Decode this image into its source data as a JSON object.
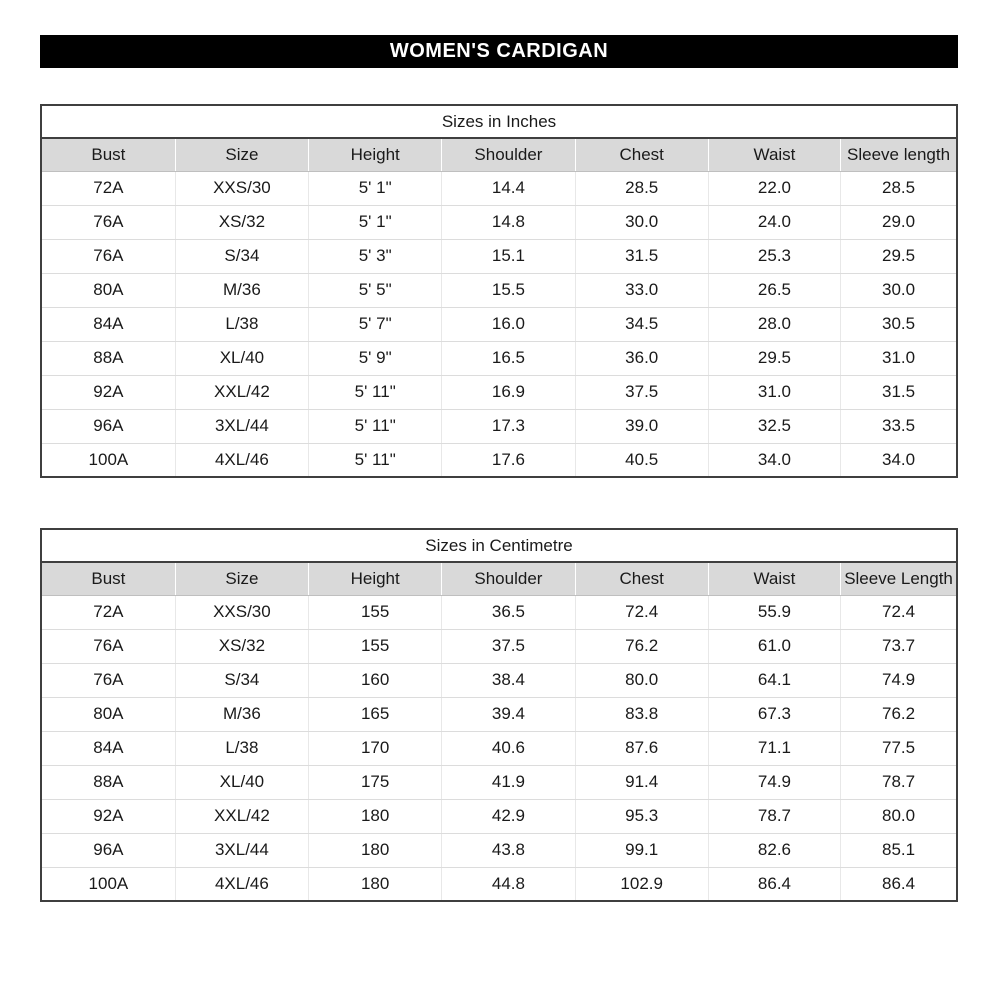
{
  "page": {
    "title": "WOMEN'S CARDIGAN"
  },
  "tables": [
    {
      "caption": "Sizes in Inches",
      "columns": [
        "Bust",
        "Size",
        "Height",
        "Shoulder",
        "Chest",
        "Waist",
        "Sleeve length"
      ],
      "rows": [
        [
          "72A",
          "XXS/30",
          "5' 1\"",
          "14.4",
          "28.5",
          "22.0",
          "28.5"
        ],
        [
          "76A",
          "XS/32",
          "5' 1\"",
          "14.8",
          "30.0",
          "24.0",
          "29.0"
        ],
        [
          "76A",
          "S/34",
          "5' 3\"",
          "15.1",
          "31.5",
          "25.3",
          "29.5"
        ],
        [
          "80A",
          "M/36",
          "5' 5\"",
          "15.5",
          "33.0",
          "26.5",
          "30.0"
        ],
        [
          "84A",
          "L/38",
          "5' 7\"",
          "16.0",
          "34.5",
          "28.0",
          "30.5"
        ],
        [
          "88A",
          "XL/40",
          "5' 9\"",
          "16.5",
          "36.0",
          "29.5",
          "31.0"
        ],
        [
          "92A",
          "XXL/42",
          "5' 11\"",
          "16.9",
          "37.5",
          "31.0",
          "31.5"
        ],
        [
          "96A",
          "3XL/44",
          "5' 11\"",
          "17.3",
          "39.0",
          "32.5",
          "33.5"
        ],
        [
          "100A",
          "4XL/46",
          "5' 11\"",
          "17.6",
          "40.5",
          "34.0",
          "34.0"
        ]
      ]
    },
    {
      "caption": "Sizes in Centimetre",
      "columns": [
        "Bust",
        "Size",
        "Height",
        "Shoulder",
        "Chest",
        "Waist",
        "Sleeve Length"
      ],
      "rows": [
        [
          "72A",
          "XXS/30",
          "155",
          "36.5",
          "72.4",
          "55.9",
          "72.4"
        ],
        [
          "76A",
          "XS/32",
          "155",
          "37.5",
          "76.2",
          "61.0",
          "73.7"
        ],
        [
          "76A",
          "S/34",
          "160",
          "38.4",
          "80.0",
          "64.1",
          "74.9"
        ],
        [
          "80A",
          "M/36",
          "165",
          "39.4",
          "83.8",
          "67.3",
          "76.2"
        ],
        [
          "84A",
          "L/38",
          "170",
          "40.6",
          "87.6",
          "71.1",
          "77.5"
        ],
        [
          "88A",
          "XL/40",
          "175",
          "41.9",
          "91.4",
          "74.9",
          "78.7"
        ],
        [
          "92A",
          "XXL/42",
          "180",
          "42.9",
          "95.3",
          "78.7",
          "80.0"
        ],
        [
          "96A",
          "3XL/44",
          "180",
          "43.8",
          "99.1",
          "82.6",
          "85.1"
        ],
        [
          "100A",
          "4XL/46",
          "180",
          "44.8",
          "102.9",
          "86.4",
          "86.4"
        ]
      ]
    }
  ]
}
